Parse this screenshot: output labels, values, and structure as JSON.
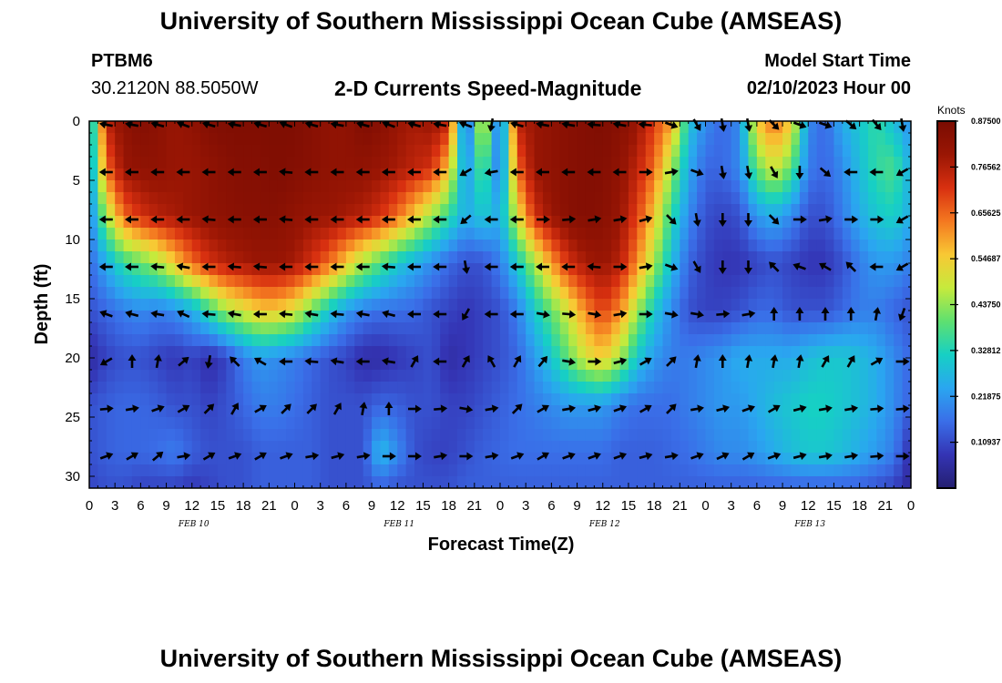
{
  "header": {
    "title": "University of Southern Mississippi Ocean Cube (AMSEAS)",
    "station": "PTBM6",
    "coordinates": "30.2120N  88.5050W",
    "chart_title": "2-D Currents Speed-Magnitude",
    "model_label": "Model Start Time",
    "model_date": "02/10/2023 Hour 00"
  },
  "footer": {
    "title": "University of Southern Mississippi Ocean Cube (AMSEAS)"
  },
  "chart_data": {
    "type": "heatmap",
    "title": "2-D Currents Speed-Magnitude",
    "xlabel": "Forecast Time(Z)",
    "ylabel": "Depth (ft)",
    "x_ticks": [
      "0",
      "3",
      "6",
      "9",
      "12",
      "15",
      "18",
      "21",
      "0",
      "3",
      "6",
      "9",
      "12",
      "15",
      "18",
      "21",
      "0",
      "3",
      "6",
      "9",
      "12",
      "15",
      "18",
      "21",
      "0",
      "3",
      "6",
      "9",
      "12",
      "15",
      "18",
      "21",
      "0"
    ],
    "x_range_hours": [
      0,
      96
    ],
    "date_labels": [
      {
        "label": "FEB 10",
        "hour": 12
      },
      {
        "label": "FEB 11",
        "hour": 36
      },
      {
        "label": "FEB 12",
        "hour": 60
      },
      {
        "label": "FEB 13",
        "hour": 84
      }
    ],
    "y_ticks": [
      0,
      5,
      10,
      15,
      20,
      25,
      30
    ],
    "ylim": [
      0,
      31
    ],
    "colorbar": {
      "units": "Knots",
      "min": 0,
      "max": 0.875,
      "tick_labels": [
        "0.87500",
        "0.76562",
        "0.65625",
        "0.54687",
        "0.43750",
        "0.32812",
        "0.21875",
        "0.10937"
      ],
      "tick_values": [
        0.875,
        0.765625,
        0.65625,
        0.546875,
        0.4375,
        0.328125,
        0.21875,
        0.109375
      ],
      "colors": [
        "#241f70",
        "#3434b4",
        "#3a6ee8",
        "#2aa6f0",
        "#16d0c4",
        "#5ee070",
        "#c6ea3c",
        "#f8c834",
        "#f47820",
        "#d83010",
        "#9a1604",
        "#7a0c02"
      ]
    },
    "speed_knots": {
      "description": "rows = depth levels, cols = forecast hours 0..96 step 2",
      "depth_ft": [
        0,
        4,
        8,
        12,
        16,
        20,
        24,
        28,
        31
      ],
      "hours": [
        0,
        2,
        4,
        6,
        8,
        10,
        12,
        14,
        16,
        18,
        20,
        22,
        24,
        26,
        28,
        30,
        32,
        34,
        36,
        38,
        40,
        42,
        44,
        46,
        48,
        50,
        52,
        54,
        56,
        58,
        60,
        62,
        64,
        66,
        68,
        70,
        72,
        74,
        76,
        78,
        80,
        82,
        84,
        86,
        88,
        90,
        92,
        94,
        96
      ],
      "values": [
        [
          0.22,
          0.75,
          0.82,
          0.85,
          0.83,
          0.8,
          0.82,
          0.85,
          0.86,
          0.86,
          0.86,
          0.86,
          0.86,
          0.84,
          0.82,
          0.82,
          0.86,
          0.84,
          0.8,
          0.78,
          0.8,
          0.75,
          0.1,
          0.55,
          0.12,
          0.75,
          0.8,
          0.82,
          0.84,
          0.85,
          0.86,
          0.84,
          0.8,
          0.7,
          0.6,
          0.3,
          0.2,
          0.15,
          0.2,
          0.55,
          0.65,
          0.55,
          0.2,
          0.15,
          0.25,
          0.3,
          0.35,
          0.28,
          0.2
        ],
        [
          0.2,
          0.65,
          0.8,
          0.82,
          0.82,
          0.8,
          0.8,
          0.82,
          0.84,
          0.85,
          0.85,
          0.86,
          0.85,
          0.84,
          0.82,
          0.82,
          0.82,
          0.8,
          0.78,
          0.75,
          0.72,
          0.55,
          0.2,
          0.4,
          0.15,
          0.65,
          0.8,
          0.82,
          0.84,
          0.85,
          0.85,
          0.82,
          0.75,
          0.65,
          0.45,
          0.25,
          0.15,
          0.15,
          0.2,
          0.4,
          0.5,
          0.4,
          0.18,
          0.15,
          0.2,
          0.28,
          0.35,
          0.38,
          0.25
        ],
        [
          0.18,
          0.45,
          0.65,
          0.72,
          0.76,
          0.78,
          0.8,
          0.82,
          0.83,
          0.84,
          0.84,
          0.84,
          0.82,
          0.8,
          0.8,
          0.78,
          0.76,
          0.72,
          0.65,
          0.55,
          0.45,
          0.35,
          0.25,
          0.3,
          0.25,
          0.5,
          0.72,
          0.8,
          0.84,
          0.85,
          0.84,
          0.8,
          0.7,
          0.55,
          0.35,
          0.2,
          0.12,
          0.1,
          0.12,
          0.22,
          0.25,
          0.2,
          0.12,
          0.12,
          0.18,
          0.25,
          0.3,
          0.32,
          0.25
        ],
        [
          0.15,
          0.25,
          0.35,
          0.4,
          0.45,
          0.55,
          0.65,
          0.72,
          0.76,
          0.78,
          0.8,
          0.8,
          0.78,
          0.72,
          0.65,
          0.55,
          0.45,
          0.38,
          0.3,
          0.25,
          0.2,
          0.15,
          0.12,
          0.12,
          0.18,
          0.3,
          0.45,
          0.6,
          0.72,
          0.78,
          0.8,
          0.76,
          0.62,
          0.45,
          0.28,
          0.15,
          0.1,
          0.08,
          0.08,
          0.1,
          0.12,
          0.1,
          0.08,
          0.08,
          0.12,
          0.18,
          0.22,
          0.22,
          0.18
        ],
        [
          0.12,
          0.15,
          0.18,
          0.2,
          0.18,
          0.2,
          0.25,
          0.35,
          0.45,
          0.5,
          0.55,
          0.55,
          0.5,
          0.4,
          0.3,
          0.22,
          0.18,
          0.16,
          0.16,
          0.15,
          0.12,
          0.1,
          0.08,
          0.1,
          0.12,
          0.18,
          0.3,
          0.4,
          0.5,
          0.62,
          0.7,
          0.62,
          0.45,
          0.3,
          0.2,
          0.12,
          0.1,
          0.1,
          0.12,
          0.15,
          0.15,
          0.12,
          0.12,
          0.12,
          0.15,
          0.18,
          0.18,
          0.15,
          0.12
        ],
        [
          0.05,
          0.1,
          0.12,
          0.12,
          0.1,
          0.08,
          0.1,
          0.06,
          0.1,
          0.18,
          0.22,
          0.2,
          0.18,
          0.15,
          0.12,
          0.1,
          0.06,
          0.06,
          0.08,
          0.1,
          0.12,
          0.06,
          0.08,
          0.1,
          0.12,
          0.15,
          0.22,
          0.3,
          0.4,
          0.5,
          0.55,
          0.45,
          0.3,
          0.22,
          0.18,
          0.18,
          0.2,
          0.22,
          0.25,
          0.25,
          0.25,
          0.25,
          0.28,
          0.3,
          0.3,
          0.28,
          0.25,
          0.2,
          0.15
        ],
        [
          0.12,
          0.14,
          0.15,
          0.15,
          0.14,
          0.12,
          0.12,
          0.1,
          0.12,
          0.15,
          0.18,
          0.18,
          0.16,
          0.14,
          0.12,
          0.12,
          0.12,
          0.15,
          0.14,
          0.12,
          0.12,
          0.1,
          0.1,
          0.12,
          0.14,
          0.16,
          0.18,
          0.2,
          0.22,
          0.22,
          0.22,
          0.18,
          0.16,
          0.16,
          0.16,
          0.18,
          0.2,
          0.22,
          0.22,
          0.25,
          0.28,
          0.3,
          0.32,
          0.32,
          0.3,
          0.28,
          0.25,
          0.2,
          0.14
        ],
        [
          0.12,
          0.14,
          0.15,
          0.15,
          0.16,
          0.18,
          0.14,
          0.12,
          0.12,
          0.12,
          0.14,
          0.14,
          0.14,
          0.14,
          0.12,
          0.12,
          0.12,
          0.28,
          0.2,
          0.12,
          0.1,
          0.1,
          0.12,
          0.14,
          0.15,
          0.16,
          0.16,
          0.16,
          0.16,
          0.16,
          0.16,
          0.14,
          0.14,
          0.14,
          0.15,
          0.16,
          0.18,
          0.2,
          0.2,
          0.22,
          0.25,
          0.28,
          0.3,
          0.3,
          0.28,
          0.25,
          0.22,
          0.18,
          0.06
        ],
        [
          0.1,
          0.12,
          0.12,
          0.1,
          0.1,
          0.1,
          0.08,
          0.1,
          0.12,
          0.12,
          0.14,
          0.14,
          0.14,
          0.14,
          0.12,
          0.12,
          0.12,
          0.14,
          0.12,
          0.12,
          0.12,
          0.12,
          0.14,
          0.14,
          0.14,
          0.14,
          0.14,
          0.14,
          0.14,
          0.14,
          0.14,
          0.14,
          0.14,
          0.14,
          0.14,
          0.14,
          0.14,
          0.14,
          0.14,
          0.14,
          0.14,
          0.14,
          0.14,
          0.14,
          0.14,
          0.14,
          0.12,
          0.1,
          0.04
        ]
      ]
    },
    "vectors": {
      "description": "current direction arrows (math angle degrees, 0 = east, 90 = north)",
      "depth_ft": [
        0,
        4,
        8,
        12,
        16,
        20,
        24,
        28
      ],
      "hours": [
        2,
        5,
        8,
        11,
        14,
        17,
        20,
        23,
        26,
        29,
        32,
        35,
        38,
        41,
        44,
        47,
        50,
        53,
        56,
        59,
        62,
        65,
        68,
        71,
        74,
        77,
        80,
        83,
        86,
        89,
        92,
        95
      ],
      "angles": [
        [
          170,
          170,
          165,
          160,
          165,
          170,
          165,
          160,
          165,
          170,
          165,
          160,
          165,
          170,
          160,
          -100,
          165,
          170,
          170,
          175,
          170,
          175,
          -20,
          -60,
          -80,
          -80,
          -45,
          -20,
          -20,
          -40,
          -50,
          -80
        ],
        [
          180,
          180,
          180,
          180,
          180,
          180,
          180,
          175,
          180,
          180,
          180,
          180,
          180,
          180,
          -150,
          -170,
          180,
          180,
          180,
          180,
          180,
          0,
          10,
          -20,
          -80,
          -80,
          -60,
          -90,
          -40,
          180,
          180,
          -150
        ],
        [
          180,
          180,
          180,
          180,
          175,
          180,
          180,
          175,
          180,
          180,
          180,
          180,
          180,
          180,
          -140,
          180,
          180,
          0,
          5,
          10,
          10,
          15,
          -45,
          -80,
          -90,
          -90,
          -45,
          0,
          10,
          0,
          0,
          -150
        ],
        [
          180,
          180,
          175,
          170,
          180,
          175,
          175,
          180,
          180,
          180,
          180,
          175,
          180,
          180,
          -80,
          180,
          180,
          180,
          180,
          175,
          0,
          10,
          -20,
          -60,
          -90,
          -90,
          135,
          160,
          150,
          135,
          180,
          -150
        ],
        [
          160,
          165,
          170,
          155,
          175,
          170,
          180,
          175,
          170,
          175,
          170,
          165,
          180,
          180,
          -120,
          180,
          180,
          -10,
          -5,
          -10,
          10,
          0,
          -10,
          -10,
          5,
          10,
          90,
          90,
          90,
          90,
          80,
          -110
        ],
        [
          -150,
          90,
          80,
          40,
          -100,
          135,
          150,
          180,
          175,
          170,
          180,
          170,
          60,
          180,
          60,
          120,
          60,
          50,
          -10,
          0,
          15,
          30,
          45,
          80,
          90,
          80,
          80,
          80,
          60,
          60,
          30,
          0
        ],
        [
          5,
          10,
          20,
          30,
          45,
          60,
          30,
          45,
          45,
          60,
          80,
          90,
          0,
          5,
          -10,
          10,
          45,
          30,
          10,
          15,
          20,
          30,
          45,
          10,
          15,
          20,
          30,
          15,
          10,
          10,
          5,
          5
        ],
        [
          20,
          30,
          40,
          10,
          30,
          20,
          30,
          20,
          10,
          15,
          10,
          0,
          0,
          10,
          0,
          10,
          20,
          30,
          20,
          20,
          20,
          15,
          10,
          20,
          25,
          30,
          20,
          15,
          10,
          10,
          5,
          0
        ]
      ]
    }
  }
}
